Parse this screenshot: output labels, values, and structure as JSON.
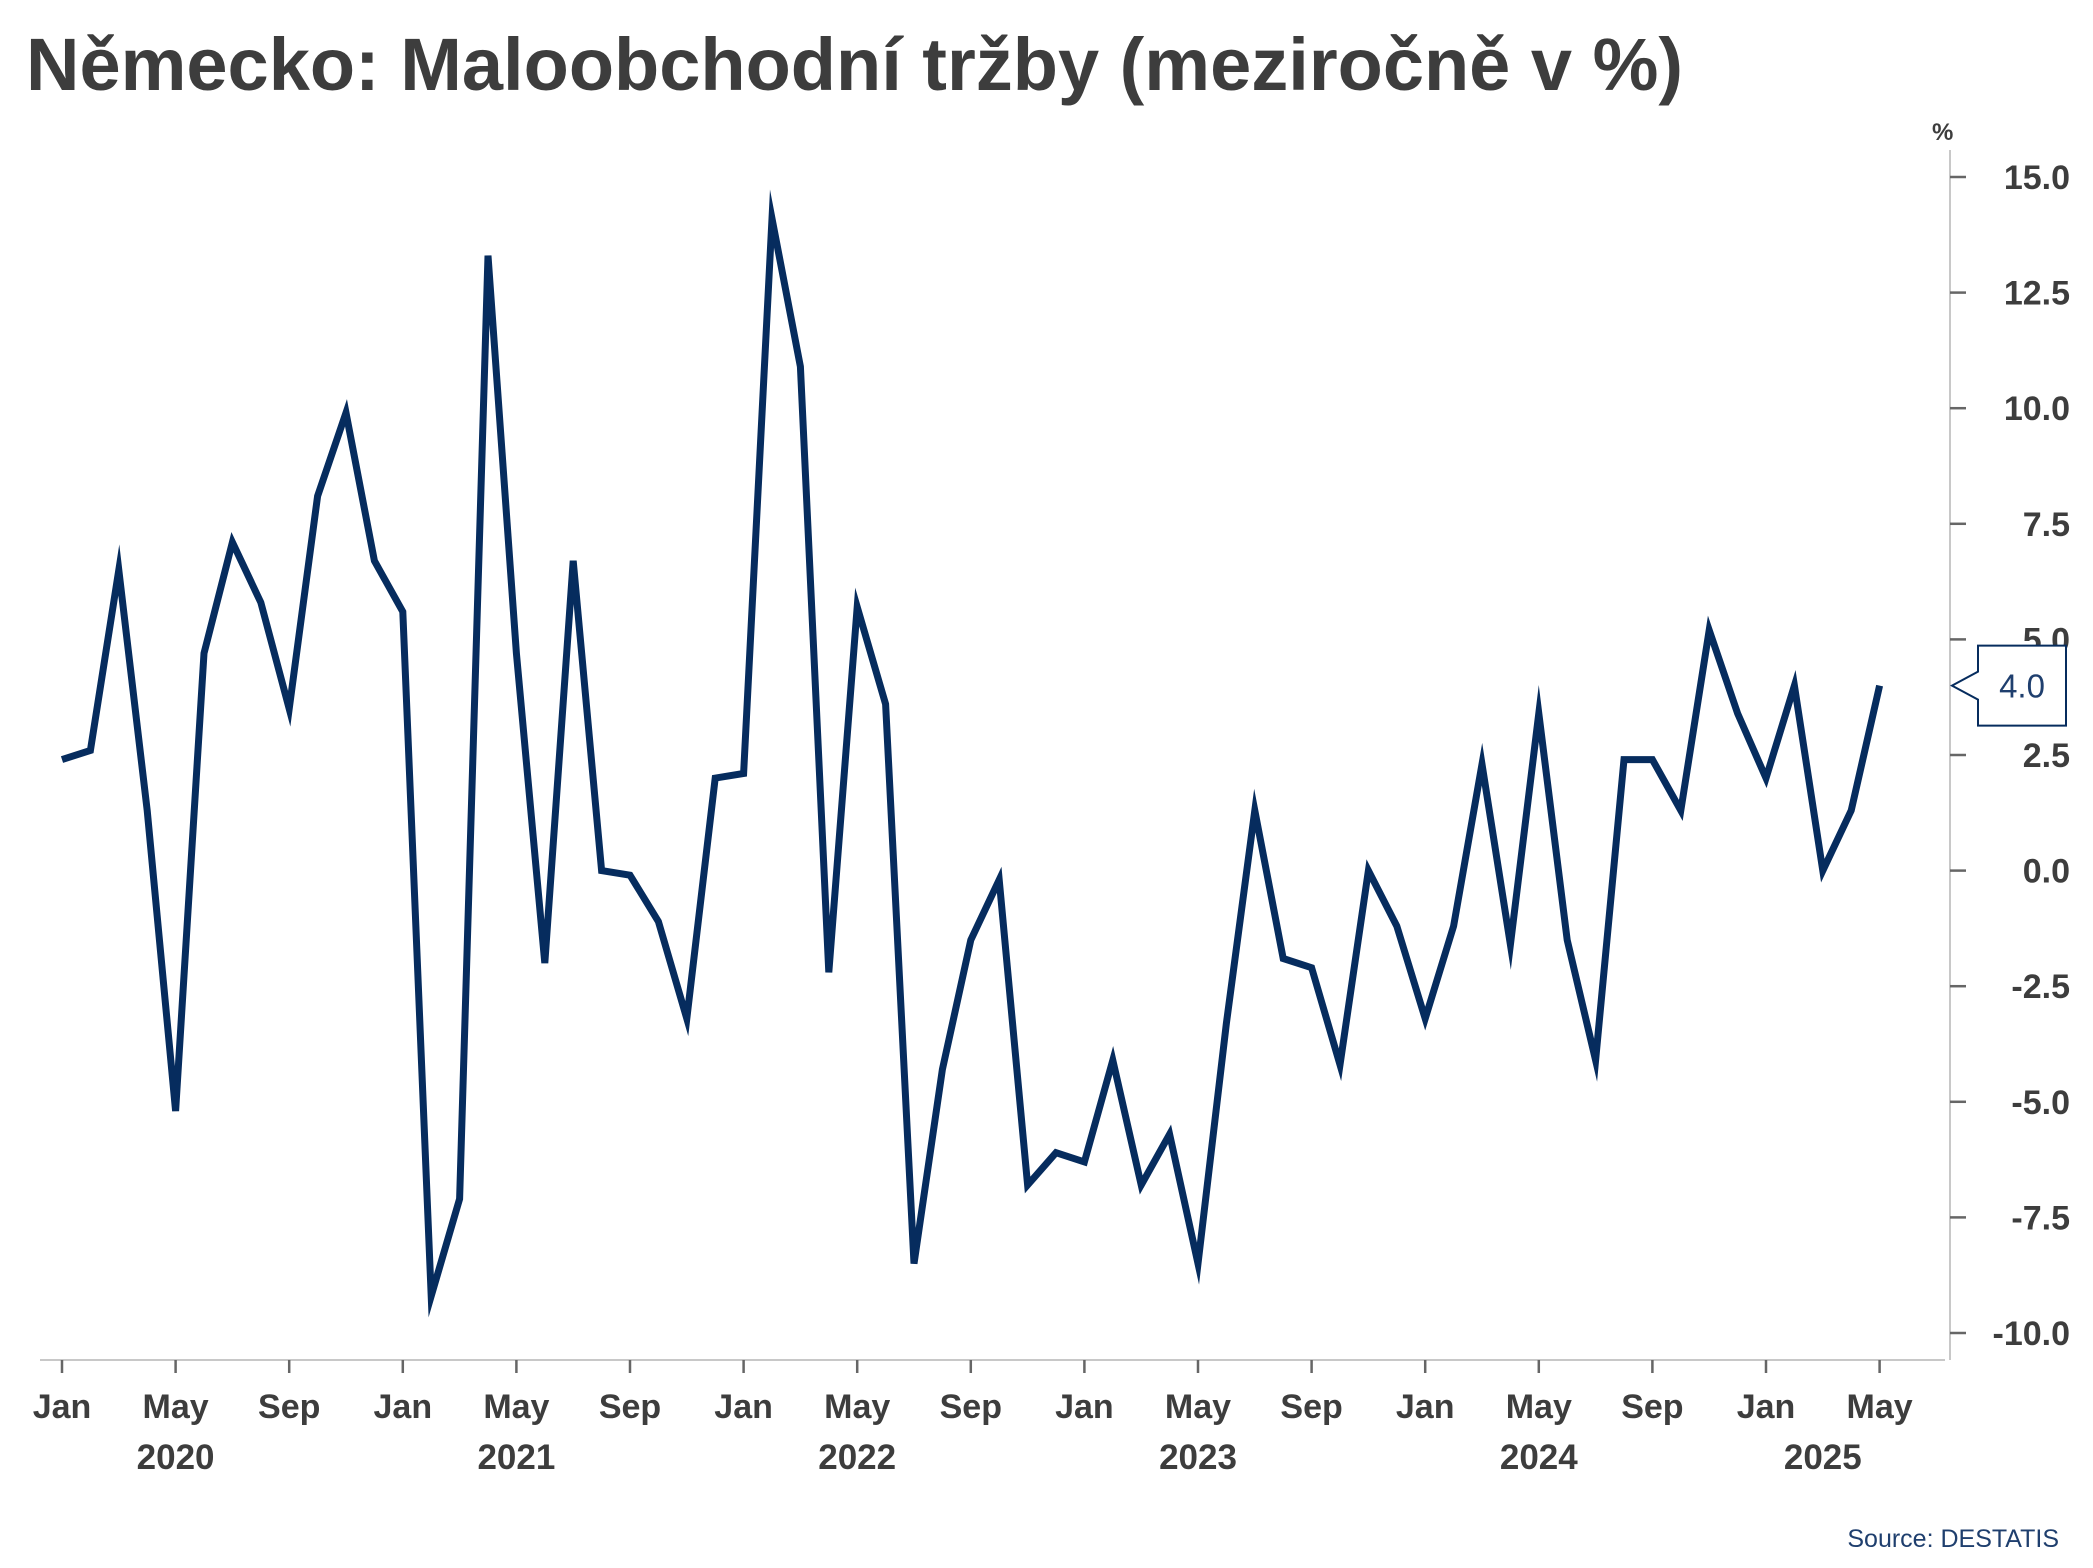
{
  "title": "Německo: Maloobchodní tržby (meziročně v %)",
  "source": "Source: DESTATIS",
  "colors": {
    "line": "#062c5e",
    "axis": "#c8c8c8",
    "text": "#3d3d3d",
    "callout_text": "#1f3f6e"
  },
  "chart_data": {
    "type": "line",
    "unit_label": "%",
    "ylim": [
      -10,
      15
    ],
    "yticks": [
      "15.0",
      "12.5",
      "10.0",
      "7.5",
      "5.0",
      "2.5",
      "0.0",
      "-2.5",
      "-5.0",
      "-7.5",
      "-10.0"
    ],
    "ytick_values": [
      15,
      12.5,
      10,
      7.5,
      5,
      2.5,
      0,
      -2.5,
      -5,
      -7.5,
      -10
    ],
    "y_axis_side": "right",
    "grid": false,
    "x_month_labels": [
      "Jan",
      "May",
      "Sep",
      "Jan",
      "May",
      "Sep",
      "Jan",
      "May",
      "Sep",
      "Jan",
      "May",
      "Sep",
      "Jan",
      "May",
      "Sep",
      "Jan",
      "May"
    ],
    "x_month_label_dates": [
      "2020-01",
      "2020-05",
      "2020-09",
      "2021-01",
      "2021-05",
      "2021-09",
      "2022-01",
      "2022-05",
      "2022-09",
      "2023-01",
      "2023-05",
      "2023-09",
      "2024-01",
      "2024-05",
      "2024-09",
      "2025-01",
      "2025-05"
    ],
    "x_year_labels": [
      "2020",
      "2021",
      "2022",
      "2023",
      "2024",
      "2025"
    ],
    "x_year_label_dates": [
      "2020-05",
      "2021-05",
      "2022-05",
      "2023-05",
      "2024-05",
      "2025-03"
    ],
    "last_value_label": "4.0",
    "series": [
      {
        "x": [
          "2020-01",
          "2020-02",
          "2020-03",
          "2020-04",
          "2020-05",
          "2020-06",
          "2020-07",
          "2020-08",
          "2020-09",
          "2020-10",
          "2020-11",
          "2020-12",
          "2021-01",
          "2021-02",
          "2021-03",
          "2021-04",
          "2021-05",
          "2021-06",
          "2021-07",
          "2021-08",
          "2021-09",
          "2021-10",
          "2021-11",
          "2021-12",
          "2022-01",
          "2022-02",
          "2022-03",
          "2022-04",
          "2022-05",
          "2022-06",
          "2022-07",
          "2022-08",
          "2022-09",
          "2022-10",
          "2022-11",
          "2022-12",
          "2023-01",
          "2023-02",
          "2023-03",
          "2023-04",
          "2023-05",
          "2023-06",
          "2023-07",
          "2023-08",
          "2023-09",
          "2023-10",
          "2023-11",
          "2023-12",
          "2024-01",
          "2024-02",
          "2024-03",
          "2024-04",
          "2024-05",
          "2024-06",
          "2024-07",
          "2024-08",
          "2024-09",
          "2024-10",
          "2024-11",
          "2024-12",
          "2025-01",
          "2025-02",
          "2025-03",
          "2025-04",
          "2025-05"
        ],
        "values": [
          2.4,
          2.6,
          6.5,
          1.3,
          -5.2,
          4.7,
          7.1,
          5.8,
          3.5,
          8.1,
          9.9,
          6.7,
          5.6,
          -9.2,
          -7.1,
          13.3,
          4.7,
          -2.0,
          6.7,
          0.0,
          -0.1,
          -1.1,
          -3.2,
          2.0,
          2.1,
          14.1,
          10.9,
          -2.2,
          5.7,
          3.6,
          -8.5,
          -4.3,
          -1.5,
          -0.2,
          -6.8,
          -6.1,
          -6.3,
          -4.1,
          -6.8,
          -5.7,
          -8.5,
          -3.3,
          1.3,
          -1.9,
          -2.1,
          -4.2,
          0.0,
          -1.2,
          -3.2,
          -1.2,
          2.3,
          -1.6,
          3.4,
          -1.5,
          -4.1,
          2.4,
          2.4,
          1.3,
          5.2,
          3.4,
          2.0,
          4.0,
          0.0,
          1.3,
          4.0
        ]
      }
    ]
  }
}
